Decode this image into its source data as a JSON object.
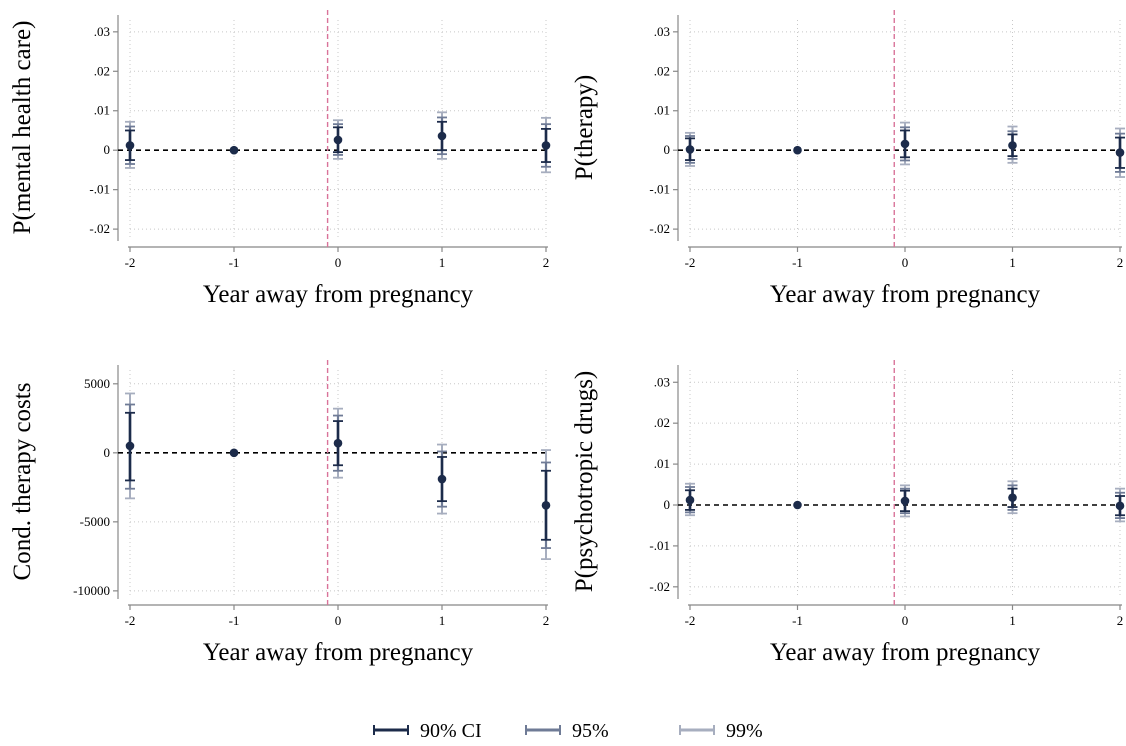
{
  "colors": {
    "point": "#1c2b4a",
    "ci90": "#1c2b4a",
    "ci95": "#6f7b96",
    "ci99": "#a7aebf",
    "zero_line": "#000000",
    "event_line": "#d9739a",
    "grid": "#c8c8c8",
    "axis": "#888888"
  },
  "legend": {
    "ci90": "90% CI",
    "ci95": "95%",
    "ci99": "99%"
  },
  "chart_data": [
    {
      "type": "scatter",
      "ylabel": "P(mental health care)",
      "xlabel": "Year away from pregnancy",
      "x_ticks": [
        "-2",
        "-1",
        "0",
        "1",
        "2"
      ],
      "y_ticks": [
        ".03",
        ".02",
        ".01",
        "0",
        "-.01",
        "-.02"
      ],
      "y_tick_values": [
        0.03,
        0.02,
        0.01,
        0,
        -0.01,
        -0.02
      ],
      "ylim": [
        -0.022,
        0.033
      ],
      "event_line_x": -0.1,
      "points": [
        {
          "x": -2,
          "y": 0.0012,
          "ci90": [
            -0.0025,
            0.005
          ],
          "ci95": [
            -0.0035,
            0.006
          ],
          "ci99": [
            -0.0045,
            0.0072
          ]
        },
        {
          "x": -1,
          "y": 0.0
        },
        {
          "x": 0,
          "y": 0.0026,
          "ci90": [
            -0.0005,
            0.0058
          ],
          "ci95": [
            -0.0012,
            0.0066
          ],
          "ci99": [
            -0.0022,
            0.0076
          ]
        },
        {
          "x": 1,
          "y": 0.0036,
          "ci90": [
            0.0,
            0.0072
          ],
          "ci95": [
            -0.001,
            0.0083
          ],
          "ci99": [
            -0.0022,
            0.0096
          ]
        },
        {
          "x": 2,
          "y": 0.0012,
          "ci90": [
            -0.003,
            0.0054
          ],
          "ci95": [
            -0.0042,
            0.0066
          ],
          "ci99": [
            -0.0056,
            0.0082
          ]
        }
      ]
    },
    {
      "type": "scatter",
      "ylabel": "P(therapy)",
      "xlabel": "Year away from pregnancy",
      "x_ticks": [
        "-2",
        "-1",
        "0",
        "1",
        "2"
      ],
      "y_ticks": [
        ".03",
        ".02",
        ".01",
        "0",
        "-.01",
        "-.02"
      ],
      "y_tick_values": [
        0.03,
        0.02,
        0.01,
        0,
        -0.01,
        -0.02
      ],
      "ylim": [
        -0.022,
        0.033
      ],
      "event_line_x": -0.1,
      "points": [
        {
          "x": -2,
          "y": 0.0002,
          "ci90": [
            -0.0025,
            0.003
          ],
          "ci95": [
            -0.0032,
            0.0036
          ],
          "ci99": [
            -0.004,
            0.0044
          ]
        },
        {
          "x": -1,
          "y": 0.0
        },
        {
          "x": 0,
          "y": 0.0016,
          "ci90": [
            -0.0018,
            0.005
          ],
          "ci95": [
            -0.0026,
            0.0058
          ],
          "ci99": [
            -0.0036,
            0.007
          ]
        },
        {
          "x": 1,
          "y": 0.0012,
          "ci90": [
            -0.0015,
            0.004
          ],
          "ci95": [
            -0.0022,
            0.0048
          ],
          "ci99": [
            -0.0032,
            0.006
          ]
        },
        {
          "x": 2,
          "y": -0.0006,
          "ci90": [
            -0.0045,
            0.0032
          ],
          "ci95": [
            -0.0055,
            0.0042
          ],
          "ci99": [
            -0.0068,
            0.0055
          ]
        }
      ]
    },
    {
      "type": "scatter",
      "ylabel": "Cond. therapy costs",
      "xlabel": "Year away from pregnancy",
      "x_ticks": [
        "-2",
        "-1",
        "0",
        "1",
        "2"
      ],
      "y_ticks": [
        "5000",
        "0",
        "-5000",
        "-10000"
      ],
      "y_tick_values": [
        5000,
        0,
        -5000,
        -10000
      ],
      "ylim": [
        -10300,
        6000
      ],
      "event_line_x": -0.1,
      "points": [
        {
          "x": -2,
          "y": 500,
          "ci90": [
            -2000,
            2900
          ],
          "ci95": [
            -2600,
            3500
          ],
          "ci99": [
            -3300,
            4300
          ]
        },
        {
          "x": -1,
          "y": 0
        },
        {
          "x": 0,
          "y": 700,
          "ci90": [
            -900,
            2300
          ],
          "ci95": [
            -1300,
            2700
          ],
          "ci99": [
            -1800,
            3200
          ]
        },
        {
          "x": 1,
          "y": -1900,
          "ci90": [
            -3500,
            -300
          ],
          "ci95": [
            -3900,
            100
          ],
          "ci99": [
            -4400,
            600
          ]
        },
        {
          "x": 2,
          "y": -3800,
          "ci90": [
            -6300,
            -1300
          ],
          "ci95": [
            -6900,
            -700
          ],
          "ci99": [
            -7700,
            200
          ]
        }
      ]
    },
    {
      "type": "scatter",
      "ylabel": "P(psychotropic drugs)",
      "xlabel": "Year away from pregnancy",
      "x_ticks": [
        "-2",
        "-1",
        "0",
        "1",
        "2"
      ],
      "y_ticks": [
        ".03",
        ".02",
        ".01",
        "0",
        "-.01",
        "-.02"
      ],
      "y_tick_values": [
        0.03,
        0.02,
        0.01,
        0,
        -0.01,
        -0.02
      ],
      "ylim": [
        -0.022,
        0.033
      ],
      "event_line_x": -0.1,
      "points": [
        {
          "x": -2,
          "y": 0.0012,
          "ci90": [
            -0.0012,
            0.0036
          ],
          "ci95": [
            -0.0018,
            0.0044
          ],
          "ci99": [
            -0.0025,
            0.0052
          ]
        },
        {
          "x": -1,
          "y": 0.0
        },
        {
          "x": 0,
          "y": 0.001,
          "ci90": [
            -0.0015,
            0.0035
          ],
          "ci95": [
            -0.002,
            0.004
          ],
          "ci99": [
            -0.0028,
            0.0048
          ]
        },
        {
          "x": 1,
          "y": 0.0018,
          "ci90": [
            -0.0005,
            0.004
          ],
          "ci95": [
            -0.0012,
            0.0048
          ],
          "ci99": [
            -0.002,
            0.0058
          ]
        },
        {
          "x": 2,
          "y": -0.0002,
          "ci90": [
            -0.0025,
            0.0022
          ],
          "ci95": [
            -0.0032,
            0.003
          ],
          "ci99": [
            -0.004,
            0.004
          ]
        }
      ]
    }
  ]
}
